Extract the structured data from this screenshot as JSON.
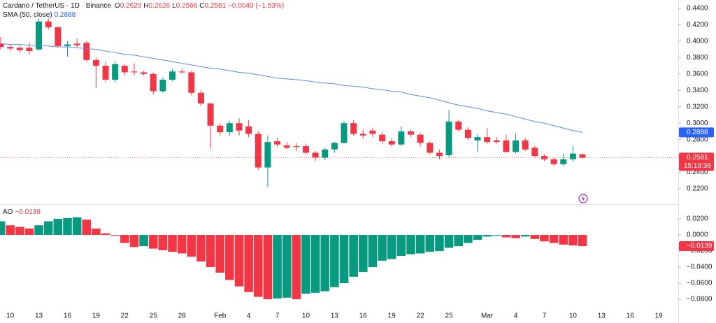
{
  "chart_data": [
    {
      "type": "candlestick",
      "title": "Cardano / TetherUS · 1D · Binance",
      "ohlc_legend": [
        {
          "label": "O",
          "value": "0.2620"
        },
        {
          "label": "H",
          "value": "0.2626"
        },
        {
          "label": "L",
          "value": "0.2566"
        },
        {
          "label": "C",
          "value": "0.2581"
        }
      ],
      "change": "−0.0040 (−1.53%)",
      "categories": [
        null,
        "10",
        null,
        null,
        "13",
        null,
        null,
        "16",
        null,
        null,
        "19",
        null,
        null,
        "22",
        null,
        null,
        "25",
        null,
        null,
        "28",
        null,
        null,
        null,
        "Feb",
        null,
        null,
        "4",
        null,
        null,
        "7",
        null,
        null,
        "10",
        null,
        null,
        "13",
        null,
        null,
        "16",
        null,
        null,
        "19",
        null,
        null,
        "22",
        null,
        null,
        "25",
        null,
        null,
        null,
        "Mar",
        null,
        null,
        "4",
        null,
        null,
        "7",
        null,
        null,
        "10",
        null,
        null,
        "13",
        null,
        null,
        "16",
        null,
        null,
        "19"
      ],
      "open": [
        0.397,
        0.393,
        0.392,
        0.392,
        0.39,
        0.424,
        0.417,
        0.394,
        0.397,
        0.398,
        0.377,
        0.37,
        0.353,
        0.37,
        0.363,
        0.362,
        0.36,
        0.339,
        0.353,
        0.363,
        0.362,
        0.337,
        0.324,
        0.297,
        0.289,
        0.3,
        0.296,
        0.287,
        0.246,
        0.278,
        0.273,
        0.272,
        0.272,
        0.264,
        0.258,
        0.268,
        0.276,
        0.3,
        0.287,
        0.291,
        0.286,
        0.278,
        0.274,
        0.29,
        0.286,
        0.276,
        0.264,
        0.261,
        0.302,
        0.292,
        0.279,
        0.283,
        0.279,
        0.279,
        0.265,
        0.279,
        0.27,
        0.26,
        0.256,
        0.25,
        0.256,
        0.262,
        null,
        null,
        null,
        null,
        null,
        null,
        null,
        null
      ],
      "high": [
        0.405,
        0.396,
        0.395,
        0.398,
        0.428,
        0.428,
        0.418,
        0.4,
        0.403,
        0.4,
        0.38,
        0.375,
        0.376,
        0.372,
        0.373,
        0.364,
        0.362,
        0.356,
        0.366,
        0.367,
        0.364,
        0.34,
        0.325,
        0.3,
        0.303,
        0.306,
        0.304,
        0.29,
        0.285,
        0.282,
        0.277,
        0.276,
        0.275,
        0.266,
        0.27,
        0.277,
        0.303,
        0.304,
        0.292,
        0.294,
        0.289,
        0.282,
        0.296,
        0.292,
        0.288,
        0.278,
        0.268,
        0.316,
        0.304,
        0.295,
        0.287,
        0.294,
        0.283,
        0.286,
        0.287,
        0.282,
        0.272,
        0.262,
        0.258,
        0.263,
        0.273,
        0.2626,
        null,
        null,
        null,
        null,
        null,
        null,
        null,
        null
      ],
      "low": [
        0.39,
        0.388,
        0.386,
        0.384,
        0.388,
        0.414,
        0.392,
        0.381,
        0.393,
        0.375,
        0.343,
        0.35,
        0.35,
        0.358,
        0.358,
        0.358,
        0.335,
        0.337,
        0.351,
        0.36,
        0.334,
        0.321,
        0.269,
        0.285,
        0.285,
        0.285,
        0.283,
        0.243,
        0.222,
        0.271,
        0.268,
        0.266,
        0.262,
        0.254,
        0.255,
        0.264,
        0.275,
        0.285,
        0.281,
        0.283,
        0.275,
        0.271,
        0.272,
        0.283,
        0.272,
        0.262,
        0.256,
        0.258,
        0.29,
        0.279,
        0.265,
        0.275,
        0.275,
        0.264,
        0.263,
        0.266,
        0.259,
        0.254,
        0.248,
        0.248,
        0.253,
        0.2566,
        null,
        null,
        null,
        null,
        null,
        null,
        null,
        null
      ],
      "close": [
        0.393,
        0.391,
        0.389,
        0.388,
        0.424,
        0.417,
        0.394,
        0.396,
        0.395,
        0.377,
        0.37,
        0.353,
        0.372,
        0.362,
        0.362,
        0.36,
        0.339,
        0.353,
        0.363,
        0.362,
        0.337,
        0.324,
        0.297,
        0.289,
        0.3,
        0.291,
        0.287,
        0.246,
        0.277,
        0.274,
        0.27,
        0.271,
        0.264,
        0.258,
        0.268,
        0.276,
        0.3,
        0.287,
        0.285,
        0.287,
        0.278,
        0.274,
        0.29,
        0.286,
        0.276,
        0.264,
        0.26,
        0.302,
        0.292,
        0.282,
        0.283,
        0.277,
        0.277,
        0.265,
        0.279,
        0.268,
        0.26,
        0.256,
        0.25,
        0.256,
        0.263,
        0.2581,
        null,
        null,
        null,
        null,
        null,
        null,
        null,
        null
      ],
      "up_color": "#089981",
      "down_color": "#f23645",
      "series": [
        {
          "name": "SMA (50, close)",
          "legend_value": "0.2888",
          "color": "#5b8ae6",
          "values": [
            0.397,
            0.396,
            0.396,
            0.395,
            0.395,
            0.394,
            0.393,
            0.393,
            0.392,
            0.391,
            0.39,
            0.388,
            0.386,
            0.384,
            0.383,
            0.381,
            0.379,
            0.377,
            0.375,
            0.373,
            0.371,
            0.369,
            0.367,
            0.366,
            0.364,
            0.362,
            0.361,
            0.359,
            0.357,
            0.355,
            0.354,
            0.353,
            0.352,
            0.35,
            0.349,
            0.348,
            0.346,
            0.345,
            0.344,
            0.342,
            0.341,
            0.339,
            0.338,
            0.335,
            0.333,
            0.331,
            0.328,
            0.325,
            0.322,
            0.32,
            0.318,
            0.315,
            0.313,
            0.311,
            0.308,
            0.305,
            0.302,
            0.3,
            0.297,
            0.294,
            0.291,
            0.2888,
            null,
            null,
            null,
            null,
            null,
            null,
            null,
            null
          ]
        }
      ],
      "price_tags": [
        {
          "value": 0.2888,
          "label": "0.2888",
          "color": "#2962ff"
        },
        {
          "value": 0.2581,
          "label": "0.2581",
          "sublabel": "15:19:36",
          "color": "#f23645"
        }
      ],
      "ylim": [
        0.203,
        0.4502
      ],
      "yticks": [
        {
          "value": 0.44,
          "label": "0.4400"
        },
        {
          "value": 0.42,
          "label": "0.4200"
        },
        {
          "value": 0.4,
          "label": "0.4000"
        },
        {
          "value": 0.38,
          "label": "0.3800"
        },
        {
          "value": 0.36,
          "label": "0.3600"
        },
        {
          "value": 0.34,
          "label": "0.3400"
        },
        {
          "value": 0.32,
          "label": "0.3200"
        },
        {
          "value": 0.3,
          "label": "0.3000"
        },
        {
          "value": 0.28,
          "label": "0.2800"
        },
        {
          "value": 0.24,
          "label": "0.2400"
        },
        {
          "value": 0.22,
          "label": "0.2200"
        }
      ]
    },
    {
      "type": "bar",
      "title": "AO",
      "legend_value": "−0.0139",
      "values": [
        0.017,
        0.012,
        0.01,
        0.008,
        0.012,
        0.017,
        0.02,
        0.021,
        0.022,
        0.019,
        0.008,
        0.002,
        -0.001,
        -0.01,
        -0.015,
        -0.014,
        -0.017,
        -0.019,
        -0.021,
        -0.023,
        -0.027,
        -0.033,
        -0.04,
        -0.047,
        -0.056,
        -0.064,
        -0.071,
        -0.077,
        -0.08,
        -0.079,
        -0.078,
        -0.08,
        -0.073,
        -0.072,
        -0.07,
        -0.065,
        -0.06,
        -0.052,
        -0.046,
        -0.04,
        -0.032,
        -0.03,
        -0.026,
        -0.024,
        -0.023,
        -0.021,
        -0.02,
        -0.016,
        -0.014,
        -0.01,
        -0.006,
        -0.002,
        -0.001,
        -0.003,
        -0.004,
        -0.002,
        -0.005,
        -0.008,
        -0.01,
        -0.012,
        -0.013,
        -0.0139,
        null,
        null,
        null,
        null,
        null,
        null,
        null,
        null
      ],
      "up_color": "#089981",
      "down_color": "#f23645",
      "price_tags": [
        {
          "value": -0.0139,
          "label": "−0.0139",
          "color": "#f23645"
        }
      ],
      "ylim": [
        -0.0904,
        0.0357
      ],
      "yticks": [
        {
          "value": 0.02,
          "label": "0.0200"
        },
        {
          "value": 0,
          "label": "0.0000"
        },
        {
          "value": -0.02,
          "label": "−0.0200"
        },
        {
          "value": -0.04,
          "label": "−0.0400"
        },
        {
          "value": -0.06,
          "label": "−0.0600"
        },
        {
          "value": -0.08,
          "label": "−0.0800"
        }
      ]
    }
  ]
}
